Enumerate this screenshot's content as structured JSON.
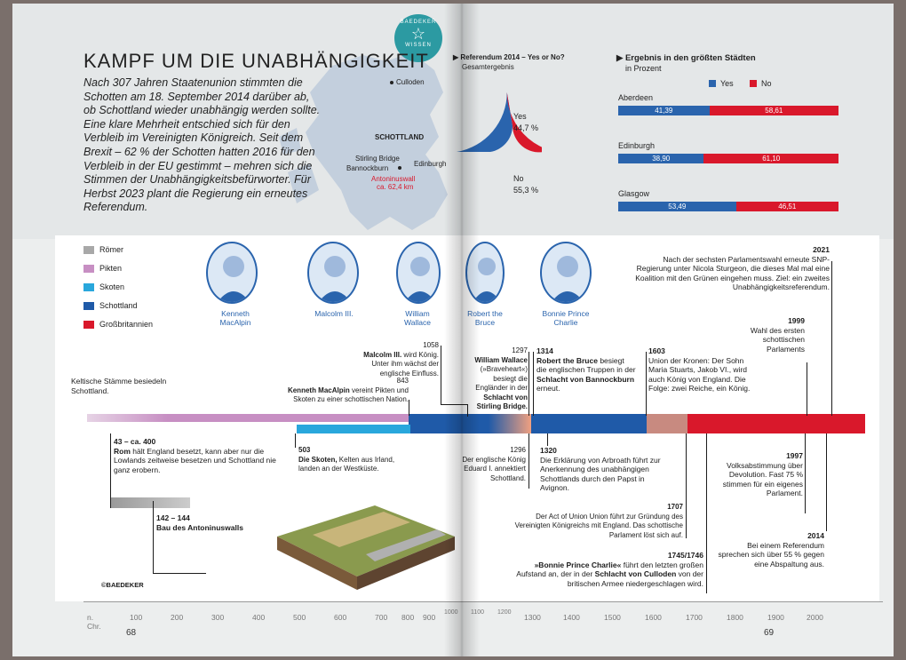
{
  "header": {
    "title": "KAMPF UM DIE UNABHÄNGIGKEIT",
    "badge_top": "BAEDEKER",
    "badge_bottom": "WISSEN",
    "intro": "Nach 307 Jahren Staatenunion stimmten die Schotten am 18. September 2014 darüber ab, ob Schottland wieder unabhängig werden sollte. Eine klare Mehrheit entschied sich für den Verbleib im Vereinigten Königreich. Seit dem Brexit – 62 % der Schotten hatten 2016 für den Verbleib in der EU gestimmt – mehren sich die Stimmen der Unabhängigkeitsbefürworter. Für Herbst 2023 plant die Regierung ein erneutes Referendum."
  },
  "map": {
    "culloden": "Culloden",
    "schottland": "SCHOTTLAND",
    "stirling": "Stirling Bridge",
    "bannockburn": "Bannockburn",
    "edinburgh": "Edinburgh",
    "antonine": "Antoninuswall",
    "antonine_len": "ca. 62,4 km"
  },
  "referendum": {
    "title": "Referendum 2014 – Yes or No?",
    "subtitle": "Gesamtergebnis",
    "yes_label": "Yes",
    "yes_value": "44,7 %",
    "no_label": "No",
    "no_value": "55,3 %",
    "yes": 44.7,
    "no": 55.3,
    "colors": {
      "yes": "#2a64ad",
      "no": "#d9182b"
    }
  },
  "cities": {
    "title": "Ergebnis in den größten Städten",
    "subtitle": "in Prozent",
    "yes_label": "Yes",
    "no_label": "No",
    "rows": [
      {
        "name": "Aberdeen",
        "yes": "41,39",
        "no": "58,61",
        "yes_pct": 41.39
      },
      {
        "name": "Edinburgh",
        "yes": "38,90",
        "no": "61,10",
        "yes_pct": 38.9
      },
      {
        "name": "Glasgow",
        "yes": "53,49",
        "no": "46,51",
        "yes_pct": 53.49
      }
    ]
  },
  "legend": [
    {
      "label": "Römer",
      "color": "#a8a8a8"
    },
    {
      "label": "Pikten",
      "color": "#c78fc3"
    },
    {
      "label": "Skoten",
      "color": "#29a7dc"
    },
    {
      "label": "Schottland",
      "color": "#1f5aa8"
    },
    {
      "label": "Großbritannien",
      "color": "#d9182b"
    }
  ],
  "portraits": [
    {
      "name": "Kenneth MacAlpin"
    },
    {
      "name": "Malcolm III."
    },
    {
      "name": "William Wallace"
    },
    {
      "name": "Robert the Bruce"
    },
    {
      "name": "Bonnie Prince Charlie"
    }
  ],
  "events": {
    "kelten": "Keltische Stämme besiedeln Schottland.",
    "e43_year": "43 – ca. 400",
    "e43_bold": "Rom",
    "e43_text": " hält England besetzt, kann aber nur die Lowlands zeitweise besetzen und Schottland nie ganz erobern.",
    "e142_year": "142 – 144",
    "e142_text": "Bau des Antoninuswalls",
    "e503_year": "503",
    "e503_bold": "Die Skoten,",
    "e503_text": " Kelten aus Irland, landen an der Westküste.",
    "e843_year": "843",
    "e843_bold": "Kenneth MacAlpin",
    "e843_text": " vereint Pikten und Skoten zu einer schottischen Nation.",
    "e1058_year": "1058",
    "e1058_bold": "Malcolm III.",
    "e1058_text": " wird König. Unter ihm wächst der englische Einfluss.",
    "e1296_year": "1296",
    "e1296_text": "Der englische König Eduard I. annektiert Schottland.",
    "e1297_year": "1297",
    "e1297_bold1": "William Wallace",
    "e1297_text1": " (»Braveheart«) besiegt die Engländer in der ",
    "e1297_bold2": "Schlacht von Stirling Bridge.",
    "e1314_year": "1314",
    "e1314_bold1": "Robert the Bruce",
    "e1314_text1": " besiegt die englischen Truppen in der ",
    "e1314_bold2": "Schlacht von Bannockburn",
    "e1314_text2": " erneut.",
    "e1320_year": "1320",
    "e1320_text": "Die Erklärung von Arbroath führt zur Anerkennung des unabhängigen Schottlands durch den Papst in Avignon.",
    "e1603_year": "1603",
    "e1603_text": "Union der Kronen: Der Sohn Maria Stuarts, Jakob VI., wird auch König von England. Die Folge: zwei Reiche, ein König.",
    "e1707_year": "1707",
    "e1707_text": "Der Act of Union Union führt zur Gründung des Vereinigten Königreichs mit England. Das schottische Parlament löst sich auf.",
    "e1745_year": "1745/1746",
    "e1745_bold1": "»Bonnie Prince Charlie«",
    "e1745_text1": " führt den letzten großen Aufstand an, der in der ",
    "e1745_bold2": "Schlacht von Culloden",
    "e1745_text2": " von der britischen Armee niedergeschlagen wird.",
    "e1997_year": "1997",
    "e1997_text": "Volksabstimmung über Devolution. Fast 75 % stimmen für ein eigenes Parlament.",
    "e1999_year": "1999",
    "e1999_text": "Wahl des ersten schottischen Parlaments",
    "e2014_year": "2014",
    "e2014_text": "Bei einem Referendum sprechen sich über 55 % gegen eine Abspaltung aus.",
    "e2021_year": "2021",
    "e2021_text": "Nach der sechsten Parlamentswahl erneute SNP-Regierung unter Nicola Sturgeon, die dieses Mal mal eine Koalition mit den Grünen eingehen muss. Ziel: ein zweites Unabhängigkeitsreferendum."
  },
  "copyright": "©BAEDEKER",
  "axis": {
    "left": [
      "n. Chr.",
      "100",
      "200",
      "300",
      "400",
      "500",
      "600",
      "700",
      "800",
      "900"
    ],
    "mid": [
      "1000",
      "1100",
      "1200"
    ],
    "right": [
      "1300",
      "1400",
      "1500",
      "1600",
      "1700",
      "1800",
      "1900",
      "2000"
    ]
  },
  "pages": {
    "left": "68",
    "right": "69"
  }
}
